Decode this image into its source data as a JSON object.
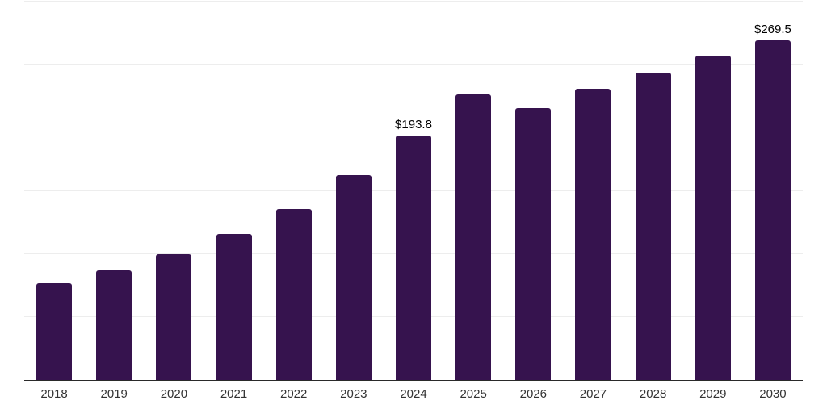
{
  "chart_data": {
    "type": "bar",
    "title": "",
    "xlabel": "",
    "ylabel": "",
    "categories": [
      "2018",
      "2019",
      "2020",
      "2021",
      "2022",
      "2023",
      "2024",
      "2025",
      "2026",
      "2027",
      "2028",
      "2029",
      "2030"
    ],
    "values": [
      76.6,
      87.0,
      99.5,
      115.5,
      135.9,
      162.4,
      193.8,
      226.7,
      215.5,
      231.0,
      243.5,
      257.0,
      269.5
    ],
    "point_labels": [
      "",
      "",
      "",
      "",
      "",
      "",
      "$193.8",
      "",
      "",
      "",
      "",
      "",
      "$269.5"
    ],
    "ylim": [
      0,
      300
    ],
    "grid_step": 50,
    "grid": true,
    "legend": "none",
    "colors": {
      "bar": "#36134e",
      "gridline": "#ededed",
      "axis_line": "#2a2a2a",
      "tick_label": "#333333",
      "value_label": "#000000",
      "background": "#ffffff"
    }
  }
}
